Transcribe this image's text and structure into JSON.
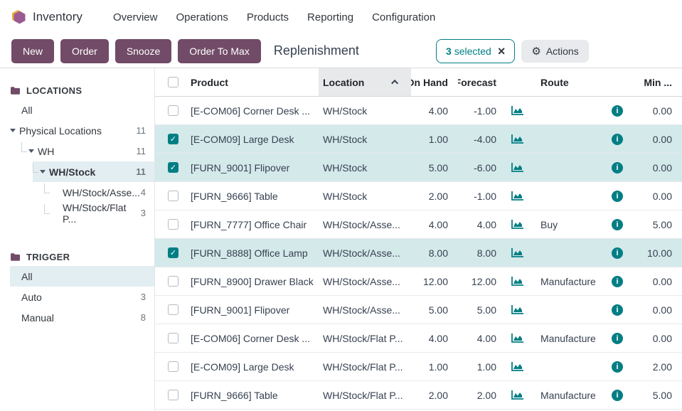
{
  "colors": {
    "primary_plum": "#714B67",
    "accent_teal": "#017E84",
    "selected_row_bg": "#D4E9EA",
    "sidebar_selected_bg": "#E3EEF2",
    "sorted_header_bg": "#E8E9EB"
  },
  "nav": {
    "app_name": "Inventory",
    "items": [
      "Overview",
      "Operations",
      "Products",
      "Reporting",
      "Configuration"
    ]
  },
  "control_panel": {
    "buttons": [
      "New",
      "Order",
      "Snooze",
      "Order To Max"
    ],
    "title": "Replenishment",
    "selection": {
      "count": "3",
      "label": "selected",
      "clear_icon": "close-icon"
    },
    "actions": {
      "label": "Actions",
      "icon": "gear-icon"
    }
  },
  "sidebar": {
    "sections": [
      {
        "title": "LOCATIONS",
        "icon": "folder-icon",
        "items": [
          {
            "label": "All",
            "count": "",
            "level": 0,
            "caret": false,
            "selected": false,
            "bold": false
          },
          {
            "label": "Physical Locations",
            "count": "11",
            "level": 0,
            "caret": true,
            "selected": false,
            "bold": false
          },
          {
            "label": "WH",
            "count": "11",
            "level": 1,
            "caret": true,
            "selected": false,
            "bold": false
          },
          {
            "label": "WH/Stock",
            "count": "11",
            "level": 2,
            "caret": true,
            "selected": true,
            "bold": true
          },
          {
            "label": "WH/Stock/Asse...",
            "count": "4",
            "level": 3,
            "caret": false,
            "selected": false,
            "bold": false
          },
          {
            "label": "WH/Stock/Flat P...",
            "count": "3",
            "level": 3,
            "caret": false,
            "selected": false,
            "bold": false
          }
        ]
      },
      {
        "title": "TRIGGER",
        "icon": "folder-icon",
        "items": [
          {
            "label": "All",
            "count": "",
            "level": 0,
            "caret": false,
            "selected": true,
            "bold": false
          },
          {
            "label": "Auto",
            "count": "3",
            "level": 0,
            "caret": false,
            "selected": false,
            "bold": false
          },
          {
            "label": "Manual",
            "count": "8",
            "level": 0,
            "caret": false,
            "selected": false,
            "bold": false
          }
        ]
      }
    ]
  },
  "table": {
    "columns": {
      "product": "Product",
      "location": "Location",
      "on_hand": "On Hand",
      "forecast": "Forecast",
      "route": "Route",
      "min": "Min ...",
      "sorted_by": "Location",
      "sort_direction": "asc"
    },
    "row_icons": {
      "forecast_chart": "area-chart-icon",
      "info": "info-icon"
    },
    "rows": [
      {
        "checked": false,
        "product": "[E-COM06] Corner Desk ...",
        "location": "WH/Stock",
        "on_hand": "4.00",
        "forecast": "-1.00",
        "route": "",
        "min": "0.00"
      },
      {
        "checked": true,
        "product": "[E-COM09] Large Desk",
        "location": "WH/Stock",
        "on_hand": "1.00",
        "forecast": "-4.00",
        "route": "",
        "min": "0.00"
      },
      {
        "checked": true,
        "product": "[FURN_9001] Flipover",
        "location": "WH/Stock",
        "on_hand": "5.00",
        "forecast": "-6.00",
        "route": "",
        "min": "0.00"
      },
      {
        "checked": false,
        "product": "[FURN_9666] Table",
        "location": "WH/Stock",
        "on_hand": "2.00",
        "forecast": "-1.00",
        "route": "",
        "min": "0.00"
      },
      {
        "checked": false,
        "product": "[FURN_7777] Office Chair",
        "location": "WH/Stock/Asse...",
        "on_hand": "4.00",
        "forecast": "4.00",
        "route": "Buy",
        "min": "5.00"
      },
      {
        "checked": true,
        "product": "[FURN_8888] Office Lamp",
        "location": "WH/Stock/Asse...",
        "on_hand": "8.00",
        "forecast": "8.00",
        "route": "",
        "min": "10.00"
      },
      {
        "checked": false,
        "product": "[FURN_8900] Drawer Black",
        "location": "WH/Stock/Asse...",
        "on_hand": "12.00",
        "forecast": "12.00",
        "route": "Manufacture",
        "min": "0.00"
      },
      {
        "checked": false,
        "product": "[FURN_9001] Flipover",
        "location": "WH/Stock/Asse...",
        "on_hand": "5.00",
        "forecast": "5.00",
        "route": "",
        "min": "0.00"
      },
      {
        "checked": false,
        "product": "[E-COM06] Corner Desk ...",
        "location": "WH/Stock/Flat P...",
        "on_hand": "4.00",
        "forecast": "4.00",
        "route": "Manufacture",
        "min": "0.00"
      },
      {
        "checked": false,
        "product": "[E-COM09] Large Desk",
        "location": "WH/Stock/Flat P...",
        "on_hand": "1.00",
        "forecast": "1.00",
        "route": "",
        "min": "2.00"
      },
      {
        "checked": false,
        "product": "[FURN_9666] Table",
        "location": "WH/Stock/Flat P...",
        "on_hand": "2.00",
        "forecast": "2.00",
        "route": "Manufacture",
        "min": "5.00"
      }
    ]
  }
}
